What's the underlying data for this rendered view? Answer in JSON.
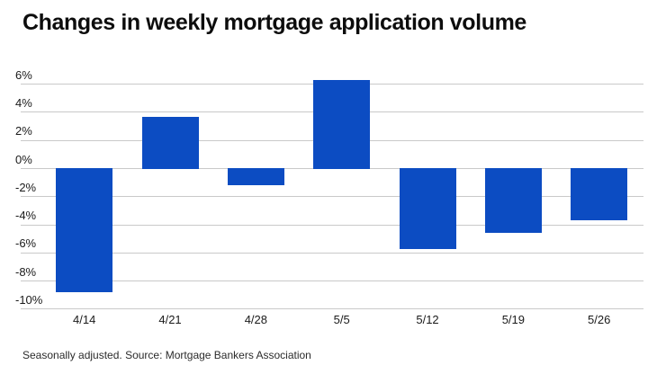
{
  "chart_data": {
    "type": "bar",
    "title": "Changes in weekly mortgage application volume",
    "categories": [
      "4/14",
      "4/21",
      "4/28",
      "5/5",
      "5/12",
      "5/19",
      "5/26"
    ],
    "values": [
      -8.8,
      3.7,
      -1.2,
      6.3,
      -5.7,
      -4.6,
      -3.7
    ],
    "unit": "percent",
    "xlabel": "",
    "ylabel": "",
    "ylim": [
      -10,
      7
    ],
    "grid": true,
    "legend": "none",
    "y_ticks": [
      {
        "value": 6,
        "label": "6%"
      },
      {
        "value": 4,
        "label": "4%"
      },
      {
        "value": 2,
        "label": "2%"
      },
      {
        "value": 0,
        "label": "0%"
      },
      {
        "value": -2,
        "label": "-2%"
      },
      {
        "value": -4,
        "label": "-4%"
      },
      {
        "value": -6,
        "label": "-6%"
      },
      {
        "value": -8,
        "label": "-8%"
      },
      {
        "value": -10,
        "label": "-10%"
      }
    ],
    "source_note": "Seasonally adjusted. Source: Mortgage Bankers Association",
    "colors": {
      "bar": "#0c4cc2",
      "gridline": "#c9c9c9",
      "title_text": "#0d0d0d",
      "axis_text": "#1a1a1a",
      "note_text": "#2b2b2b",
      "background": "#ffffff"
    }
  }
}
